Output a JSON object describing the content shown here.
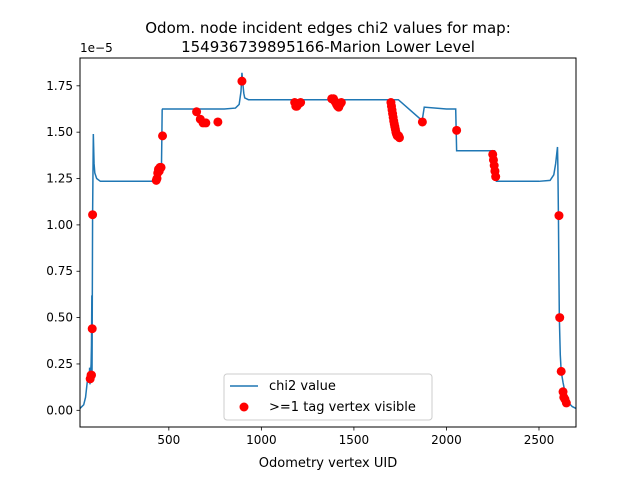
{
  "chart_data": {
    "type": "line",
    "title_line1": "Odom. node incident edges chi2 values for map:",
    "title_line2": "154936739895166-Marion Lower Level",
    "xlabel": "Odometry vertex UID",
    "ylabel": "",
    "y_offset_label": "1e−5",
    "xlim": [
      20,
      2700
    ],
    "ylim": [
      -0.09,
      1.9
    ],
    "xticks": [
      500,
      1000,
      1500,
      2000,
      2500
    ],
    "xtick_labels": [
      "500",
      "1000",
      "1500",
      "2000",
      "2500"
    ],
    "yticks": [
      0.0,
      0.25,
      0.5,
      0.75,
      1.0,
      1.25,
      1.5,
      1.75
    ],
    "ytick_labels": [
      "0.00",
      "0.25",
      "0.50",
      "0.75",
      "1.00",
      "1.25",
      "1.50",
      "1.75"
    ],
    "grid": false,
    "legend_position": "bottom-center",
    "line_color": "#1f77b4",
    "scatter_color": "#ff0000",
    "series": [
      {
        "name": "chi2 value",
        "kind": "line",
        "x": [
          20,
          40,
          50,
          60,
          65,
          70,
          72,
          74,
          76,
          80,
          82,
          84,
          85,
          86,
          88,
          92,
          96,
          100,
          110,
          130,
          170,
          300,
          420,
          430,
          440,
          450,
          460,
          462,
          464,
          466,
          470,
          480,
          600,
          700,
          800,
          860,
          880,
          890,
          895,
          900,
          905,
          910,
          930,
          1000,
          1500,
          1740,
          1860,
          1870,
          1880,
          2000,
          2050,
          2055,
          2100,
          2200,
          2260,
          2270,
          2300,
          2400,
          2500,
          2560,
          2580,
          2590,
          2600,
          2602,
          2605,
          2608,
          2610,
          2615,
          2620,
          2630,
          2640,
          2650,
          2660,
          2680,
          2700
        ],
        "y": [
          0.01,
          0.03,
          0.07,
          0.16,
          0.2,
          0.16,
          0.23,
          0.14,
          0.18,
          0.25,
          0.35,
          0.62,
          0.2,
          0.45,
          1.05,
          1.49,
          1.33,
          1.28,
          1.25,
          1.235,
          1.235,
          1.235,
          1.235,
          1.28,
          1.3,
          1.31,
          1.3,
          1.45,
          1.62,
          1.625,
          1.625,
          1.625,
          1.625,
          1.625,
          1.625,
          1.63,
          1.65,
          1.72,
          1.82,
          1.76,
          1.71,
          1.685,
          1.675,
          1.675,
          1.675,
          1.675,
          1.57,
          1.57,
          1.635,
          1.625,
          1.625,
          1.4,
          1.4,
          1.4,
          1.4,
          1.235,
          1.235,
          1.235,
          1.235,
          1.24,
          1.27,
          1.33,
          1.42,
          1.32,
          1.05,
          0.7,
          0.5,
          0.3,
          0.21,
          0.15,
          0.1,
          0.07,
          0.04,
          0.02,
          0.01
        ]
      },
      {
        "name": ">=1 tag vertex visible",
        "kind": "scatter",
        "x": [
          75,
          80,
          82,
          86,
          88,
          432,
          436,
          440,
          444,
          448,
          452,
          458,
          466,
          650,
          670,
          685,
          700,
          765,
          895,
          1180,
          1186,
          1192,
          1198,
          1204,
          1212,
          1380,
          1390,
          1398,
          1406,
          1412,
          1418,
          1425,
          1432,
          1700,
          1703,
          1706,
          1709,
          1712,
          1715,
          1718,
          1721,
          1724,
          1727,
          1730,
          1734,
          1738,
          1742,
          1746,
          1870,
          2055,
          2250,
          2254,
          2258,
          2262,
          2266,
          2608,
          2612,
          2620,
          2630,
          2634,
          2640,
          2648
        ],
        "y": [
          0.17,
          0.19,
          0.19,
          0.44,
          1.055,
          1.24,
          1.25,
          1.28,
          1.3,
          1.29,
          1.31,
          1.31,
          1.48,
          1.61,
          1.57,
          1.55,
          1.55,
          1.555,
          1.775,
          1.66,
          1.64,
          1.64,
          1.65,
          1.655,
          1.66,
          1.68,
          1.68,
          1.665,
          1.65,
          1.64,
          1.635,
          1.65,
          1.66,
          1.66,
          1.64,
          1.62,
          1.6,
          1.58,
          1.56,
          1.545,
          1.53,
          1.515,
          1.5,
          1.49,
          1.48,
          1.48,
          1.48,
          1.47,
          1.555,
          1.51,
          1.38,
          1.35,
          1.32,
          1.29,
          1.26,
          1.05,
          0.5,
          0.21,
          0.1,
          0.07,
          0.06,
          0.04
        ]
      }
    ]
  }
}
